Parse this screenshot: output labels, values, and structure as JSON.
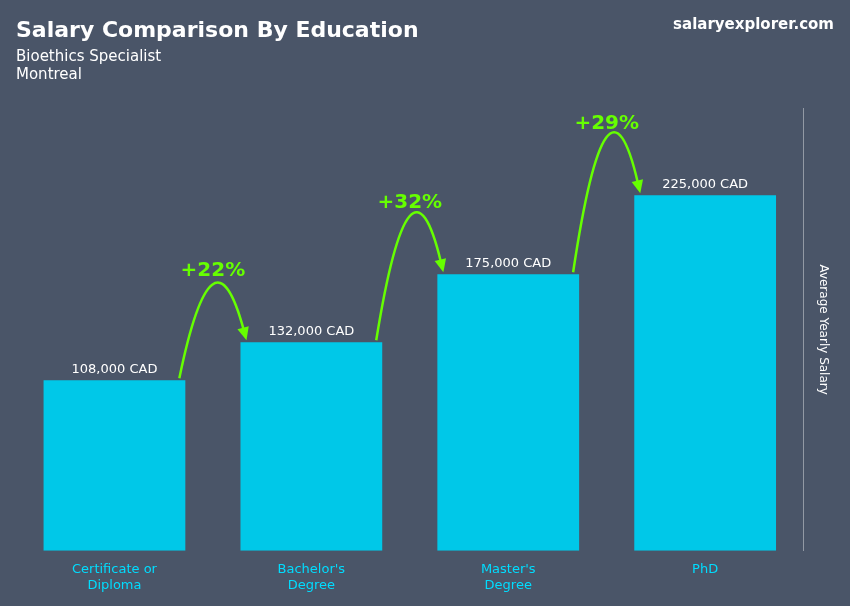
{
  "chart_data": {
    "type": "bar",
    "title": "Salary Comparison By Education",
    "subtitle": [
      "Bioethics Specialist",
      "Montreal"
    ],
    "source": "salaryexplorer.com",
    "y_label": "Average Yearly Salary",
    "categories": [
      "Certificate or\nDiploma",
      "Bachelor's\nDegree",
      "Master's\nDegree",
      "PhD"
    ],
    "values": [
      108000,
      132000,
      175000,
      225000
    ],
    "value_labels": [
      "108,000 CAD",
      "132,000 CAD",
      "175,000 CAD",
      "225,000 CAD"
    ],
    "data_labels": true,
    "color": "#00C8E8",
    "annotations": [
      {
        "text": "+22%",
        "from": "Certificate or\nDiploma",
        "to": "Bachelor's\nDegree",
        "color": "#66FF00"
      },
      {
        "text": "+32%",
        "from": "Bachelor's\nDegree",
        "to": "Master's\nDegree",
        "color": "#66FF00"
      },
      {
        "text": "+29%",
        "from": "Master's\nDegree",
        "to": "PhD",
        "color": "#66FF00"
      }
    ],
    "ylim": [
      0,
      280000
    ],
    "tick_labels": "x",
    "grid": false
  }
}
